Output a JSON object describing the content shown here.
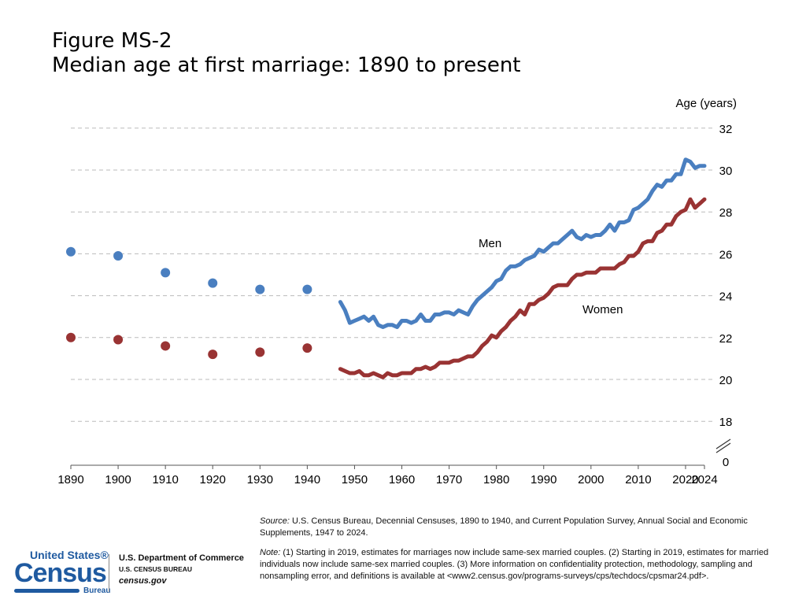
{
  "header": {
    "figure_label": "Figure MS-2",
    "title": "Median age at first marriage: 1890 to present"
  },
  "chart_data": {
    "type": "line",
    "title": "Median age at first marriage: 1890 to present",
    "ylabel": "Age (years)",
    "y_ticks": [
      "32",
      "30",
      "28",
      "26",
      "24",
      "22",
      "20",
      "18",
      "0"
    ],
    "x_ticks": [
      "1890",
      "1900",
      "1910",
      "1920",
      "1930",
      "1940",
      "1950",
      "1960",
      "1970",
      "1980",
      "1990",
      "2000",
      "2010",
      "2020",
      "2024"
    ],
    "xlim": [
      1890,
      2024
    ],
    "ylim": [
      0,
      32
    ],
    "y_axis_break": "between 0 and 18",
    "grid": true,
    "y_axis_side": "right",
    "decennial": {
      "x": [
        1890,
        1900,
        1910,
        1920,
        1930,
        1940
      ],
      "series": [
        {
          "name": "Men",
          "color": "#4a7fc0",
          "values": [
            26.1,
            25.9,
            25.1,
            24.6,
            24.3,
            24.3
          ]
        },
        {
          "name": "Women",
          "color": "#993333",
          "values": [
            22.0,
            21.9,
            21.6,
            21.2,
            21.3,
            21.5
          ]
        }
      ]
    },
    "annual": {
      "x_start": 1947,
      "x_end": 2024,
      "series": [
        {
          "name": "Men",
          "color": "#4a7fc0",
          "values": [
            23.7,
            23.3,
            22.7,
            22.8,
            22.9,
            23.0,
            22.8,
            23.0,
            22.6,
            22.5,
            22.6,
            22.6,
            22.5,
            22.8,
            22.8,
            22.7,
            22.8,
            23.1,
            22.8,
            22.8,
            23.1,
            23.1,
            23.2,
            23.2,
            23.1,
            23.3,
            23.2,
            23.1,
            23.5,
            23.8,
            24.0,
            24.2,
            24.4,
            24.7,
            24.8,
            25.2,
            25.4,
            25.4,
            25.5,
            25.7,
            25.8,
            25.9,
            26.2,
            26.1,
            26.3,
            26.5,
            26.5,
            26.7,
            26.9,
            27.1,
            26.8,
            26.7,
            26.9,
            26.8,
            26.9,
            26.9,
            27.1,
            27.4,
            27.1,
            27.5,
            27.5,
            27.6,
            28.1,
            28.2,
            28.4,
            28.6,
            29.0,
            29.3,
            29.2,
            29.5,
            29.5,
            29.8,
            29.8,
            30.5,
            30.4,
            30.1,
            30.2,
            30.2
          ]
        },
        {
          "name": "Women",
          "color": "#993333",
          "values": [
            20.5,
            20.4,
            20.3,
            20.3,
            20.4,
            20.2,
            20.2,
            20.3,
            20.2,
            20.1,
            20.3,
            20.2,
            20.2,
            20.3,
            20.3,
            20.3,
            20.5,
            20.5,
            20.6,
            20.5,
            20.6,
            20.8,
            20.8,
            20.8,
            20.9,
            20.9,
            21.0,
            21.1,
            21.1,
            21.3,
            21.6,
            21.8,
            22.1,
            22.0,
            22.3,
            22.5,
            22.8,
            23.0,
            23.3,
            23.1,
            23.6,
            23.6,
            23.8,
            23.9,
            24.1,
            24.4,
            24.5,
            24.5,
            24.5,
            24.8,
            25.0,
            25.0,
            25.1,
            25.1,
            25.1,
            25.3,
            25.3,
            25.3,
            25.3,
            25.5,
            25.6,
            25.9,
            25.9,
            26.1,
            26.5,
            26.6,
            26.6,
            27.0,
            27.1,
            27.4,
            27.4,
            27.8,
            28.0,
            28.1,
            28.6,
            28.2,
            28.4,
            28.6
          ]
        }
      ]
    },
    "annotations": [
      "Men",
      "Women"
    ]
  },
  "footer": {
    "source_label": "Source:",
    "source_text": "U.S. Census Bureau, Decennial Censuses, 1890 to 1940, and Current Population Survey, Annual Social and Economic Supplements, 1947 to 2024.",
    "note_label": "Note:",
    "note_text": "(1) Starting in 2019, estimates for marriages now include same-sex married couples. (2) Starting in 2019, estimates for married individuals now include same-sex married couples. (3) More information on confidentiality protection, methodology, sampling and nonsampling error, and definitions is available at <www2.census.gov/programs-surveys/cps/techdocs/cpsmar24.pdf>."
  },
  "logo": {
    "line1": "United States®",
    "line2": "Census",
    "line3": "Bureau",
    "dept": "U.S. Department of Commerce",
    "bureau": "U.S. CENSUS BUREAU",
    "site": "census.gov"
  }
}
